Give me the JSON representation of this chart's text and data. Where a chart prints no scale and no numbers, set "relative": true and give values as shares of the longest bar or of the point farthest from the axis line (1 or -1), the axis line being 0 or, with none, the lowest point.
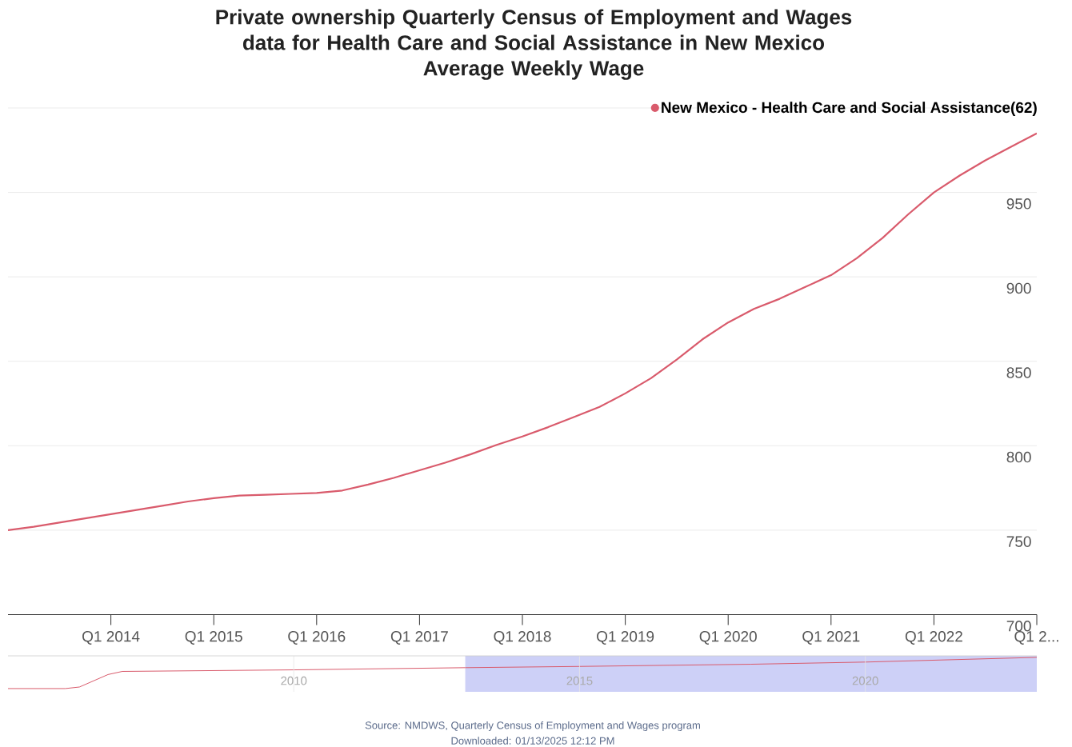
{
  "chart_data": [
    {
      "type": "line",
      "title": "Private ownership Quarterly Census of Employment and Wages data for Health Care and Social Assistance in New Mexico",
      "subtitle": "Average Weekly Wage",
      "x": [
        "2013-01",
        "2013-04",
        "2013-07",
        "2013-10",
        "2014-01",
        "2014-04",
        "2014-07",
        "2014-10",
        "2015-01",
        "2015-04",
        "2015-07",
        "2015-10",
        "2016-01",
        "2016-04",
        "2016-07",
        "2016-10",
        "2017-01",
        "2017-04",
        "2017-07",
        "2017-10",
        "2018-01",
        "2018-04",
        "2018-07",
        "2018-10",
        "2019-01",
        "2019-04",
        "2019-07",
        "2019-10",
        "2020-01",
        "2020-04",
        "2020-07",
        "2020-10",
        "2021-01",
        "2021-04",
        "2021-07",
        "2021-10",
        "2022-01",
        "2022-04",
        "2022-07",
        "2022-10",
        "2023-01"
      ],
      "series": [
        {
          "name": "New Mexico - Health Care and Social Assistance(62)",
          "color": "#d95b6c",
          "values": [
            750,
            752,
            754.5,
            757,
            759.5,
            762,
            764.5,
            767,
            769,
            770.5,
            771,
            771.5,
            772,
            773.5,
            777,
            781,
            785.5,
            790,
            795,
            800.5,
            805.5,
            811,
            817,
            823,
            831,
            840,
            851,
            863,
            873,
            881,
            887,
            894,
            901,
            911,
            923,
            937,
            950,
            960,
            969,
            977,
            985
          ]
        }
      ],
      "xlim": [
        "2013-01",
        "2023-01"
      ],
      "xticks": [
        {
          "value": "2014-01",
          "label": "Q1 2014"
        },
        {
          "value": "2015-01",
          "label": "Q1 2015"
        },
        {
          "value": "2016-01",
          "label": "Q1 2016"
        },
        {
          "value": "2017-01",
          "label": "Q1 2017"
        },
        {
          "value": "2018-01",
          "label": "Q1 2018"
        },
        {
          "value": "2019-01",
          "label": "Q1 2019"
        },
        {
          "value": "2020-01",
          "label": "Q1 2020"
        },
        {
          "value": "2021-01",
          "label": "Q1 2021"
        },
        {
          "value": "2022-01",
          "label": "Q1 2022"
        },
        {
          "value": "2023-01",
          "label": "Q1 2..."
        }
      ],
      "ylim": [
        700,
        1000
      ],
      "yticks": [
        700,
        750,
        800,
        850,
        900,
        950,
        {
          "value": 1000,
          "label": null
        }
      ],
      "grid": "y",
      "legend": "top right",
      "annotations": [
        "Source: NMDWS, Quarterly Census of Employment and Wages program",
        "Downloaded: 01/13/2025 12:12 PM"
      ]
    },
    {
      "type": "line",
      "relative": true,
      "x": [
        2005,
        2006,
        2006.25,
        2006.5,
        2006.75,
        2007,
        2010,
        2013,
        2015,
        2018,
        2020,
        2023
      ],
      "series": [
        {
          "color": "#d95b6c",
          "values": [
            0,
            0,
            0.05,
            0.25,
            0.45,
            0.55,
            0.6,
            0.67,
            0.71,
            0.78,
            0.85,
            1
          ]
        }
      ],
      "xlim": [
        2005,
        2023
      ],
      "xticks": [
        2010,
        2015,
        2020
      ],
      "grid": "x",
      "bands": [
        {
          "axis": "x",
          "from": 2013,
          "to": 2023,
          "color": "#cdd0f7"
        }
      ]
    }
  ]
}
